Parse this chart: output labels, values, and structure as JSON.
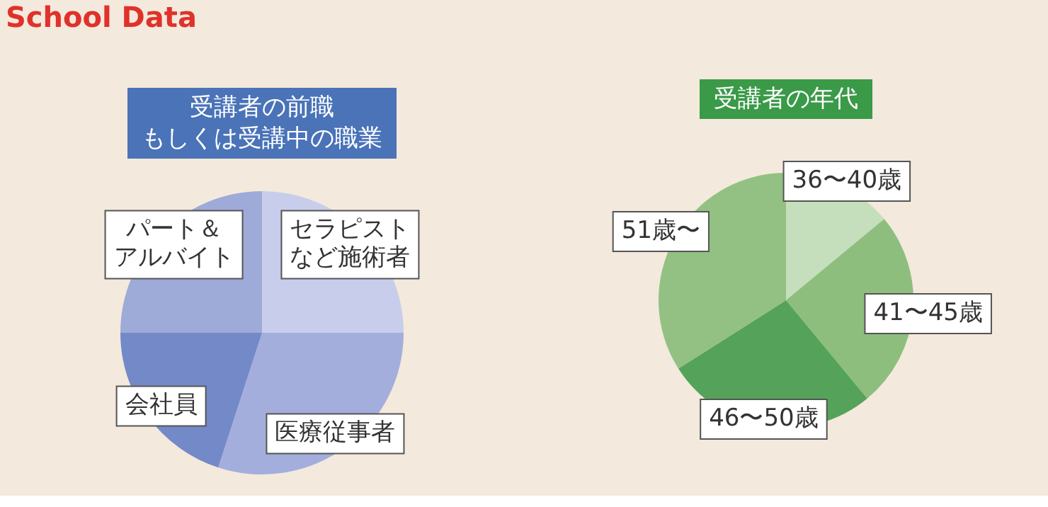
{
  "chart_data": [
    {
      "type": "pie",
      "title": "受講者の前職",
      "subtitle": "もしくは受講中の職業",
      "annotations": [
        "School Data"
      ],
      "categories": [
        "セラピストなど施術者",
        "医療従事者",
        "会社員",
        "パート＆アルバイト"
      ],
      "values": [
        25,
        30,
        20,
        25
      ],
      "colors": [
        "#c8cdeb",
        "#a3aedd",
        "#7489c8",
        "#9eaad8"
      ]
    },
    {
      "type": "pie",
      "title": "受講者の年代",
      "categories": [
        "36〜40歳",
        "41〜45歳",
        "46〜50歳",
        "51歳〜"
      ],
      "values": [
        14,
        25,
        27,
        34
      ],
      "colors": [
        "#c5dfbd",
        "#8dbe7e",
        "#55a35a",
        "#92c183"
      ]
    }
  ]
}
